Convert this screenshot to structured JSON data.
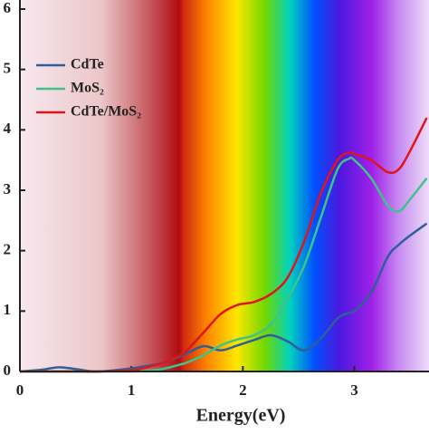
{
  "chart_data": {
    "type": "line",
    "x_label": "Energy(eV)",
    "x": [
      0,
      0.2,
      0.35,
      0.5,
      0.7,
      1.0,
      1.1,
      1.2,
      1.3,
      1.45,
      1.5,
      1.65,
      1.8,
      1.95,
      2.1,
      2.25,
      2.4,
      2.55,
      2.7,
      2.85,
      2.95,
      3.0,
      3.15,
      3.3,
      3.4,
      3.5,
      3.65
    ],
    "series": [
      {
        "name": "CdTe",
        "color": "#2e5f9a",
        "values": [
          0,
          0.03,
          0.07,
          0.04,
          0,
          0.05,
          0.08,
          0.11,
          0.15,
          0.26,
          0.3,
          0.42,
          0.35,
          0.43,
          0.52,
          0.6,
          0.5,
          0.35,
          0.55,
          0.88,
          0.97,
          1.0,
          1.3,
          1.9,
          2.1,
          2.25,
          2.45
        ]
      },
      {
        "name": "MoS₂",
        "color": "#3ec48a",
        "values": [
          0,
          0,
          0,
          0,
          0,
          0,
          0.01,
          0.02,
          0.05,
          0.12,
          0.15,
          0.27,
          0.43,
          0.53,
          0.6,
          0.78,
          1.2,
          1.75,
          2.55,
          3.35,
          3.52,
          3.5,
          3.2,
          2.75,
          2.65,
          2.85,
          3.2
        ]
      },
      {
        "name": "CdTe/MoS₂",
        "color": "#e0141b",
        "values": [
          0,
          0,
          0,
          0,
          0,
          0.02,
          0.05,
          0.1,
          0.15,
          0.28,
          0.35,
          0.65,
          0.95,
          1.1,
          1.15,
          1.28,
          1.55,
          2.15,
          2.95,
          3.5,
          3.62,
          3.6,
          3.5,
          3.3,
          3.35,
          3.65,
          4.2
        ]
      }
    ],
    "xlim": [
      0,
      3.67
    ],
    "ylim": [
      0,
      6.15
    ],
    "xticks": [
      0,
      1,
      2,
      3
    ],
    "yticks": [
      0,
      1,
      2,
      3,
      4,
      5,
      6
    ]
  }
}
